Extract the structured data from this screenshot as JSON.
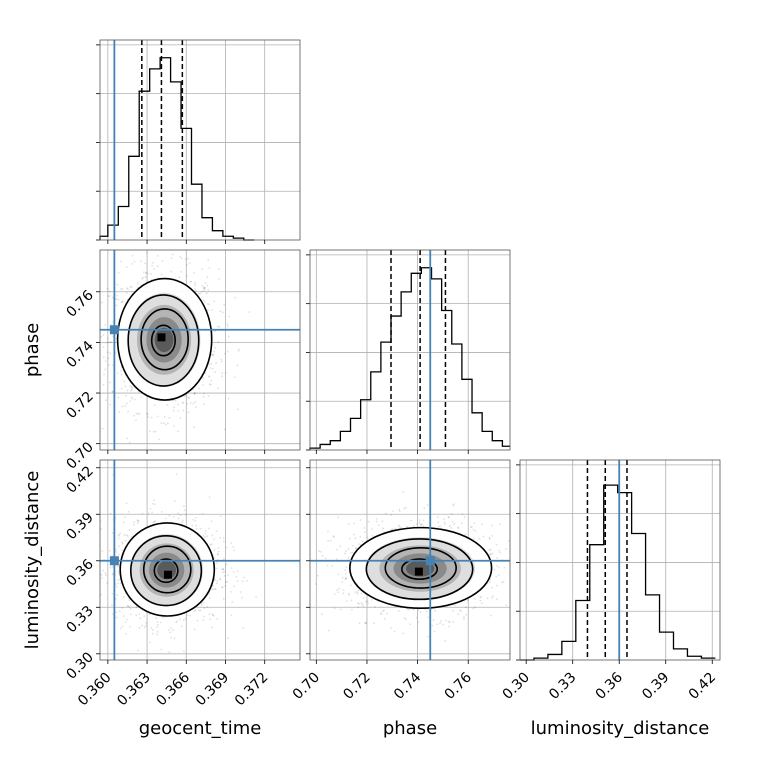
{
  "chart_data": {
    "type": "corner",
    "parameters": [
      "geocent_time",
      "phase",
      "luminosity_distance"
    ],
    "truths": {
      "geocent_time": 0.3605,
      "phase": 0.745,
      "luminosity_distance": 0.36
    },
    "truth_color": "#4682b4",
    "grid": true,
    "ranges": {
      "geocent_time": [
        0.3594,
        0.3747
      ],
      "phase": [
        0.6975,
        0.7765
      ],
      "luminosity_distance": [
        0.296,
        0.425
      ]
    },
    "ticks": {
      "geocent_time": [
        "0.360",
        "0.363",
        "0.366",
        "0.369",
        "0.372"
      ],
      "phase": [
        "0.70",
        "0.72",
        "0.74",
        "0.76"
      ],
      "luminosity_distance": [
        "0.30",
        "0.33",
        "0.36",
        "0.39",
        "0.42"
      ]
    },
    "quantiles": {
      "geocent_time": [
        0.3626,
        0.3641,
        0.3657
      ],
      "phase": [
        0.7295,
        0.741,
        0.751
      ],
      "luminosity_distance": [
        0.3395,
        0.351,
        0.365
      ]
    },
    "histograms": {
      "geocent_time": {
        "edges": [
          0.3594,
          0.36,
          0.3608,
          0.3616,
          0.3624,
          0.3632,
          0.364,
          0.3648,
          0.3656,
          0.3664,
          0.3672,
          0.368,
          0.3688,
          0.3696,
          0.3704,
          0.3712
        ],
        "values": [
          0.02,
          0.08,
          0.18,
          0.45,
          0.8,
          0.92,
          0.98,
          0.85,
          0.6,
          0.3,
          0.12,
          0.05,
          0.02,
          0.01,
          0.0
        ]
      },
      "phase": {
        "edges": [
          0.6975,
          0.7015,
          0.7055,
          0.7095,
          0.7135,
          0.7175,
          0.7215,
          0.7255,
          0.7295,
          0.7335,
          0.7375,
          0.7415,
          0.7455,
          0.7495,
          0.7535,
          0.7575,
          0.7615,
          0.7655,
          0.7695,
          0.7735,
          0.7765
        ],
        "values": [
          0.01,
          0.03,
          0.05,
          0.1,
          0.17,
          0.27,
          0.42,
          0.58,
          0.72,
          0.85,
          0.95,
          0.98,
          0.92,
          0.75,
          0.57,
          0.38,
          0.2,
          0.1,
          0.05,
          0.02
        ]
      },
      "luminosity_distance": {
        "edges": [
          0.296,
          0.305,
          0.314,
          0.323,
          0.332,
          0.341,
          0.35,
          0.359,
          0.368,
          0.377,
          0.386,
          0.395,
          0.404,
          0.413,
          0.422
        ],
        "values": [
          0.0,
          0.01,
          0.03,
          0.1,
          0.32,
          0.62,
          0.94,
          0.9,
          0.68,
          0.35,
          0.15,
          0.06,
          0.02,
          0.01
        ]
      }
    },
    "pairs": [
      {
        "x": "geocent_time",
        "y": "phase",
        "center": [
          0.3643,
          0.741
        ],
        "sigma": [
          0.0018,
          0.012
        ],
        "peak": [
          0.3641,
          0.742
        ]
      },
      {
        "x": "geocent_time",
        "y": "luminosity_distance",
        "center": [
          0.3645,
          0.354
        ],
        "sigma": [
          0.0018,
          0.015
        ],
        "peak": [
          0.3646,
          0.351
        ]
      },
      {
        "x": "phase",
        "y": "luminosity_distance",
        "center": [
          0.741,
          0.355
        ],
        "sigma": [
          0.014,
          0.013
        ],
        "peak": [
          0.7405,
          0.353
        ]
      }
    ]
  }
}
